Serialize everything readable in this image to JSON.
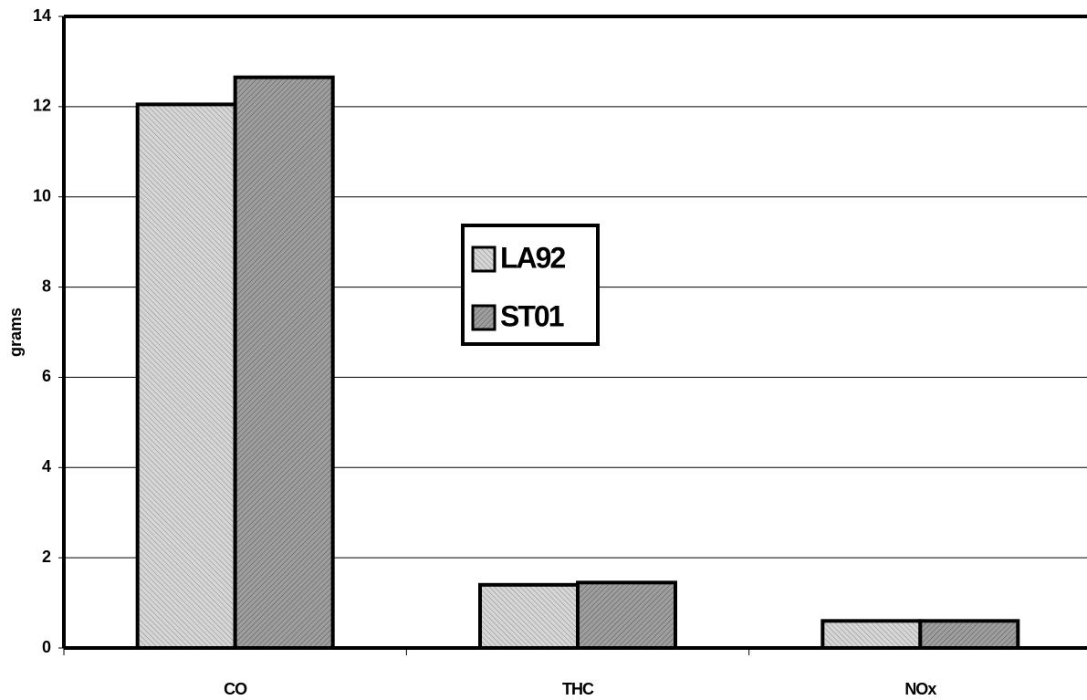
{
  "chart_data": {
    "type": "bar",
    "y_label": "grams",
    "categories": [
      "CO",
      "THC",
      "NOx"
    ],
    "series": [
      {
        "name": "LA92",
        "color": "#d6d6d6",
        "values": [
          12.05,
          1.4,
          0.6
        ]
      },
      {
        "name": "ST01",
        "color": "#9e9e9e",
        "values": [
          12.65,
          1.45,
          0.6
        ]
      }
    ],
    "ylim": [
      0,
      14
    ],
    "yticks": [
      0,
      2,
      4,
      6,
      8,
      10,
      12,
      14
    ],
    "grid": true,
    "legend": "center"
  }
}
